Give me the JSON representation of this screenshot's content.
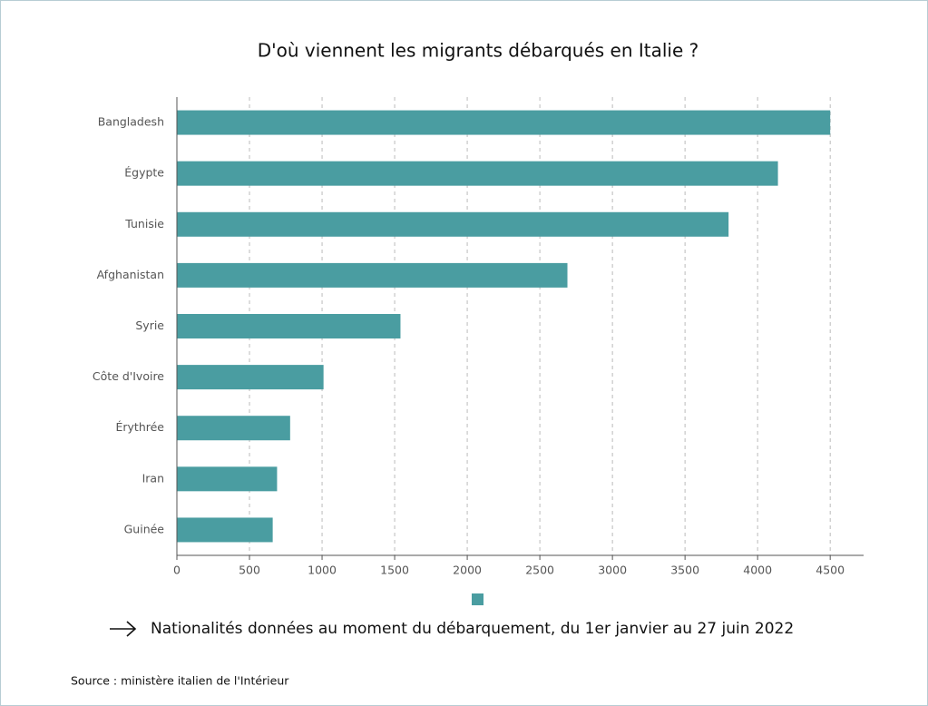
{
  "chart_data": {
    "type": "barh",
    "title": "D'où viennent les migrants débarqués en Italie ?",
    "categories": [
      "Bangladesh",
      "Égypte",
      "Tunisie",
      "Afghanistan",
      "Syrie",
      "Côte d'Ivoire",
      "Érythrée",
      "Iran",
      "Guinée"
    ],
    "values": [
      4500,
      4140,
      3800,
      2690,
      1540,
      1010,
      780,
      690,
      660
    ],
    "color": "#4a9da1",
    "xlim": [
      0,
      4730
    ],
    "xticks": [
      0,
      500,
      1000,
      1500,
      2000,
      2500,
      3000,
      3500,
      4000,
      4500
    ],
    "grid": true,
    "note": "Nationalités données au moment du débarquement, du 1er janvier au 27 juin 2022",
    "source": "Source : ministère italien de l'Intérieur"
  }
}
